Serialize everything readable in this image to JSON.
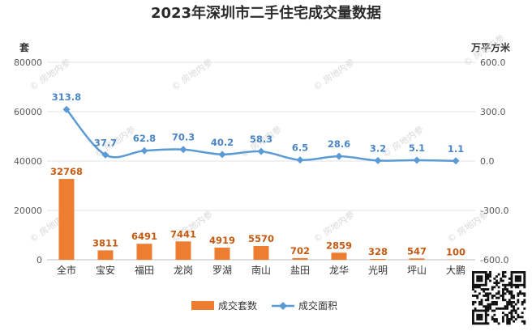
{
  "chart_data": {
    "type": "bar+line",
    "title": "2023年深圳市二手住宅成交量数据",
    "left_unit": "套",
    "right_unit": "万平方米",
    "categories": [
      "全市",
      "宝安",
      "福田",
      "龙岗",
      "罗湖",
      "南山",
      "盐田",
      "龙华",
      "光明",
      "坪山",
      "大鹏"
    ],
    "series": [
      {
        "name": "成交套数",
        "type": "bar",
        "axis": "left",
        "color": "#ed7d31",
        "values": [
          32768,
          3811,
          6491,
          7441,
          4919,
          5570,
          702,
          2859,
          328,
          547,
          100
        ]
      },
      {
        "name": "成交面积",
        "type": "line",
        "axis": "right",
        "color": "#5b9bd5",
        "values": [
          313.8,
          37.7,
          62.8,
          70.3,
          40.2,
          58.3,
          6.5,
          28.6,
          3.2,
          5.1,
          1.1
        ]
      }
    ],
    "left_axis": {
      "min": 0,
      "max": 80000,
      "ticks": [
        "0",
        "20000",
        "40000",
        "60000",
        "80000"
      ]
    },
    "right_axis": {
      "min": -600,
      "max": 600,
      "ticks": [
        "-600.0",
        "-300.0",
        "0.0",
        "300.0",
        "600.0"
      ]
    },
    "line_labels": [
      "313.8",
      "37.7",
      "62.8",
      "70.3",
      "40.2",
      "58.3",
      "6.5",
      "28.6",
      "3.2",
      "5.1",
      "1.1"
    ],
    "bar_labels": [
      "32768",
      "3811",
      "6491",
      "7441",
      "4919",
      "5570",
      "702",
      "2859",
      "328",
      "547",
      "100"
    ],
    "legend": [
      {
        "label": "成交套数",
        "kind": "bar",
        "color": "#ed7d31"
      },
      {
        "label": "成交面积",
        "kind": "line",
        "color": "#5b9bd5"
      }
    ],
    "grid": true,
    "legend_position": "bottom-center"
  },
  "watermark": "房地内参"
}
